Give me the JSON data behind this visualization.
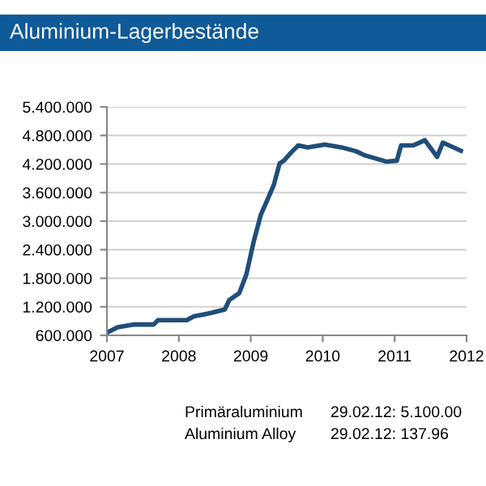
{
  "chart_data": {
    "type": "line",
    "title": "Aluminium-Lagerbestände",
    "x": [
      2007.0,
      2007.15,
      2007.38,
      2007.65,
      2007.71,
      2008.11,
      2008.21,
      2008.44,
      2008.64,
      2008.7,
      2008.84,
      2008.94,
      2009.04,
      2009.14,
      2009.24,
      2009.32,
      2009.4,
      2009.46,
      2009.56,
      2009.66,
      2009.79,
      2010.03,
      2010.26,
      2010.46,
      2010.59,
      2010.89,
      2011.03,
      2011.09,
      2011.26,
      2011.42,
      2011.59,
      2011.67,
      2011.92
    ],
    "series": [
      {
        "color": "#1f4e79",
        "values": [
          658000,
          770000,
          828000,
          828000,
          920000,
          920000,
          1000000,
          1067000,
          1145000,
          1340000,
          1487000,
          1885000,
          2567000,
          3136000,
          3477000,
          3760000,
          4210000,
          4270000,
          4440000,
          4590000,
          4550000,
          4610000,
          4550000,
          4470000,
          4380000,
          4250000,
          4270000,
          4590000,
          4590000,
          4700000,
          4350000,
          4650000,
          4480000
        ]
      }
    ],
    "xlim": [
      2007,
      2012
    ],
    "xticks": [
      2007,
      2008,
      2009,
      2010,
      2011,
      2012
    ],
    "ylim": [
      600000,
      5400000
    ],
    "yticks": [
      {
        "value": 600000,
        "label": "600.000"
      },
      {
        "value": 1200000,
        "label": "1.200.000"
      },
      {
        "value": 1800000,
        "label": "1.800.000"
      },
      {
        "value": 2400000,
        "label": "2.400.000"
      },
      {
        "value": 3000000,
        "label": "3.000.000"
      },
      {
        "value": 3600000,
        "label": "3.600.000"
      },
      {
        "value": 4200000,
        "label": "4.200.000"
      },
      {
        "value": 4800000,
        "label": "4.800.000"
      },
      {
        "value": 5400000,
        "label": "5.400.000"
      }
    ],
    "grid": "y",
    "marker": "none",
    "line_style": "solid",
    "annotations": [
      "Primäraluminium",
      "29.02.12: 5.100.00",
      "Aluminium Alloy",
      "29.02.12: 137.96"
    ]
  }
}
